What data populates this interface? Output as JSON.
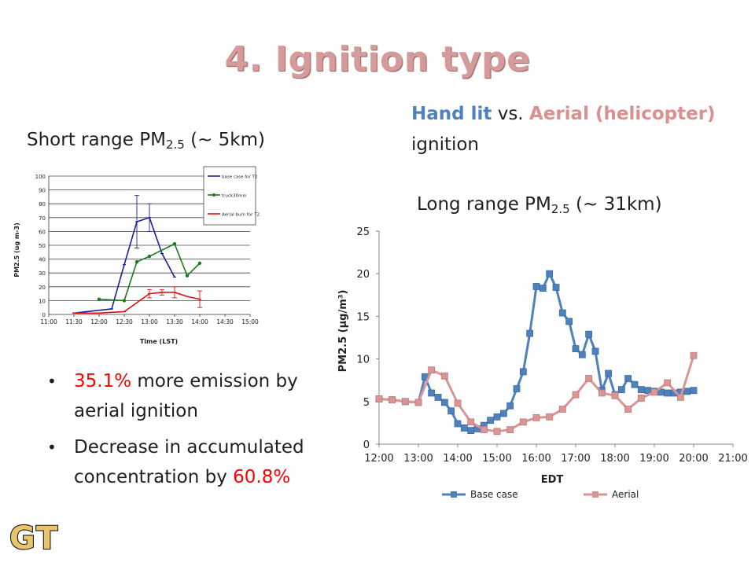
{
  "slide": {
    "title": "4. Ignition type",
    "heading": {
      "hand": "Hand lit",
      "vs": " vs. ",
      "aerial": "Aerial (helicopter)",
      "rest": "ignition"
    },
    "short_label": {
      "pre": "Short range PM",
      "sub": "2.5",
      "post": " (~ 5km)"
    },
    "long_label": {
      "pre": "Long  range PM",
      "sub": "2.5",
      "post": " (~ 31km)"
    },
    "bullets": [
      {
        "marker": "•",
        "highlight": "35.1%",
        "text": " more emission by aerial ignition"
      },
      {
        "marker": "•",
        "text": "Decrease in accumulated concentration by ",
        "highlight": "60.8%"
      }
    ],
    "logo_text": "GT"
  },
  "chart_data": [
    {
      "type": "line",
      "title": "",
      "xlabel": "Time (LST)",
      "ylabel": "PM2.5 (ug m-3)",
      "x_ticks": [
        "11:00",
        "11:30",
        "12:00",
        "12:30",
        "13:00",
        "13:30",
        "14:00",
        "14:30",
        "15:00"
      ],
      "xlim": [
        0,
        8
      ],
      "ylim": [
        0,
        100
      ],
      "y_ticks": [
        0,
        10,
        20,
        30,
        40,
        50,
        60,
        70,
        80,
        90,
        100
      ],
      "grid": true,
      "legend": "top-right",
      "series": [
        {
          "name": "base case for T2",
          "color": "#1f1f9f",
          "marker": "none",
          "x": [
            1,
            1.5,
            2,
            2.5,
            3,
            3.5,
            4,
            4.5,
            5
          ],
          "y": [
            1,
            2,
            3,
            4,
            36,
            67,
            70,
            44,
            27
          ],
          "error": [
            0,
            0,
            0,
            0,
            0,
            19,
            10,
            0,
            0
          ]
        },
        {
          "name": "truck30min",
          "color": "#1a7a1a",
          "marker": "circle",
          "x": [
            2,
            3,
            3.5,
            4,
            5,
            5.5,
            6
          ],
          "y": [
            11,
            10,
            38,
            42,
            51,
            28,
            37
          ],
          "error": [
            0,
            0,
            0,
            0,
            0,
            0,
            0
          ]
        },
        {
          "name": "Aerial burn for T2",
          "color": "#e01010",
          "marker": "none",
          "x": [
            1,
            2,
            3,
            4,
            4.5,
            5,
            5.5,
            6
          ],
          "y": [
            1,
            1,
            2,
            15,
            16,
            16,
            13,
            11
          ],
          "error": [
            0,
            0,
            0,
            3,
            2,
            4,
            0,
            6
          ]
        }
      ]
    },
    {
      "type": "line",
      "title": "",
      "xlabel": "EDT",
      "ylabel": "PM2.5 (µg/m³)",
      "x_ticks": [
        "12:00",
        "13:00",
        "14:00",
        "15:00",
        "16:00",
        "17:00",
        "18:00",
        "19:00",
        "20:00",
        "21:00"
      ],
      "xlim": [
        12,
        21
      ],
      "ylim": [
        0,
        25
      ],
      "y_ticks": [
        0,
        5,
        10,
        15,
        20,
        25
      ],
      "grid": false,
      "legend": "bottom",
      "series": [
        {
          "name": "Base case",
          "color": "#4f81bd",
          "marker": "square",
          "x": [
            12,
            12.333,
            12.667,
            13,
            13.167,
            13.333,
            13.5,
            13.667,
            13.833,
            14,
            14.167,
            14.333,
            14.5,
            14.667,
            14.833,
            15,
            15.167,
            15.333,
            15.5,
            15.667,
            15.833,
            16,
            16.167,
            16.333,
            16.5,
            16.667,
            16.833,
            17,
            17.167,
            17.333,
            17.5,
            17.667,
            17.833,
            18,
            18.167,
            18.333,
            18.5,
            18.667,
            18.833,
            19,
            19.167,
            19.333,
            19.5,
            19.667,
            19.833,
            20
          ],
          "y": [
            5.3,
            5.2,
            5.0,
            4.9,
            7.9,
            6.0,
            5.5,
            4.9,
            3.9,
            2.4,
            1.9,
            1.6,
            1.8,
            2.2,
            2.8,
            3.2,
            3.6,
            4.5,
            6.5,
            8.5,
            13.0,
            18.5,
            18.3,
            20.0,
            18.4,
            15.4,
            14.4,
            11.2,
            10.5,
            12.9,
            10.9,
            6.3,
            8.3,
            5.8,
            6.4,
            7.7,
            7.0,
            6.4,
            6.3,
            6.2,
            6.1,
            6.0,
            6.0,
            6.1,
            6.2,
            6.3
          ]
        },
        {
          "name": "Aerial",
          "color": "#d99694",
          "marker": "square",
          "x": [
            12,
            12.333,
            12.667,
            13,
            13.333,
            13.667,
            14,
            14.333,
            14.667,
            15,
            15.333,
            15.667,
            16,
            16.333,
            16.667,
            17,
            17.333,
            17.667,
            18,
            18.333,
            18.667,
            19,
            19.333,
            19.667,
            20
          ],
          "y": [
            5.3,
            5.2,
            5.0,
            4.9,
            8.7,
            8.0,
            4.8,
            2.6,
            1.7,
            1.5,
            1.7,
            2.6,
            3.1,
            3.2,
            4.1,
            5.8,
            7.7,
            6.0,
            5.7,
            4.1,
            5.4,
            6.1,
            7.2,
            5.5,
            10.4
          ]
        }
      ]
    }
  ]
}
